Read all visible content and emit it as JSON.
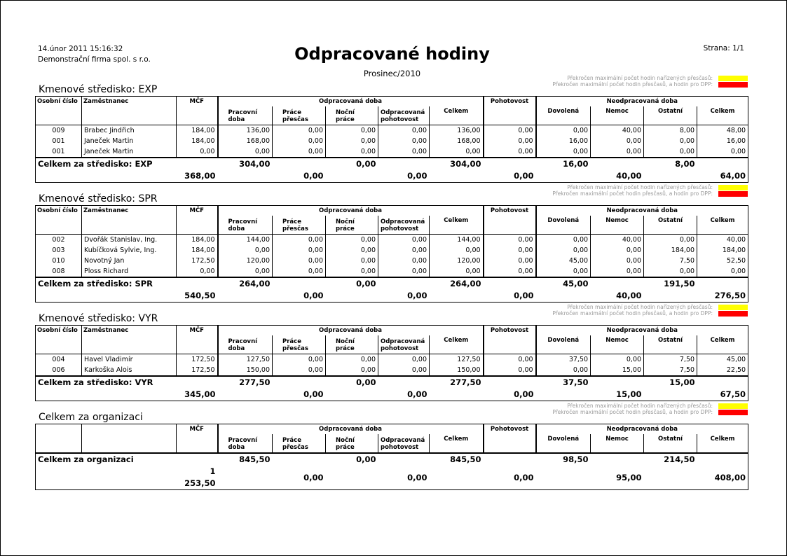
{
  "header": {
    "datetime": "14.únor 2011  15:16:32",
    "company": "Demonstrační firma spol. s r.o.",
    "title": "Odpracované hodiny",
    "period": "Prosinec/2010",
    "page": "Strana: 1/1"
  },
  "legend": {
    "items": [
      {
        "text": "Překročen maximální počet hodin nařízených přesčasů:",
        "color": "#ffff00"
      },
      {
        "text": "Překročen maximální počet hodin přesčasů, a hodin pro DPP:",
        "color": "#ff0000"
      }
    ]
  },
  "columns": {
    "osobni": "Osobní číslo",
    "zam": "Zaměstnanec",
    "mcf": "MČF",
    "odpr": "Odpracovaná doba",
    "prac1": "Pracovní",
    "prac2": "doba",
    "pres1": "Práce",
    "pres2": "přesčas",
    "noc1": "Noční",
    "noc2": "práce",
    "opoh1": "Odpracovaná",
    "opoh2": "pohotovost",
    "celkem": "Celkem",
    "pohot": "Pohotovost",
    "neodpr": "Neodpracovaná doba",
    "dov": "Dovolená",
    "nemoc": "Nemoc",
    "ostatni": "Ostatní",
    "celkem2": "Celkem"
  },
  "sections": [
    {
      "title": "Kmenové středisko: EXP",
      "show_ids": true,
      "rows": [
        [
          "009",
          "Brabec Jindřich",
          "184,00",
          "136,00",
          "0,00",
          "0,00",
          "0,00",
          "136,00",
          "0,00",
          "0,00",
          "40,00",
          "8,00",
          "48,00"
        ],
        [
          "001",
          "Janeček Martin",
          "184,00",
          "168,00",
          "0,00",
          "0,00",
          "0,00",
          "168,00",
          "0,00",
          "16,00",
          "0,00",
          "0,00",
          "16,00"
        ],
        [
          "001",
          "Janeček Martin",
          "0,00",
          "0,00",
          "0,00",
          "0,00",
          "0,00",
          "0,00",
          "0,00",
          "0,00",
          "0,00",
          "0,00",
          "0,00"
        ]
      ],
      "summary": {
        "label": "Celkem za středisko: EXP",
        "row1": [
          "304,00",
          "0,00",
          "304,00",
          "16,00",
          "8,00"
        ],
        "row2": [
          "368,00",
          "0,00",
          "0,00",
          "0,00",
          "40,00",
          "64,00"
        ]
      }
    },
    {
      "title": "Kmenové středisko: SPR",
      "show_ids": true,
      "rows": [
        [
          "002",
          "Dvořák Stanislav, Ing.",
          "184,00",
          "144,00",
          "0,00",
          "0,00",
          "0,00",
          "144,00",
          "0,00",
          "0,00",
          "40,00",
          "0,00",
          "40,00"
        ],
        [
          "003",
          "Kubíčková Sylvie, Ing.",
          "184,00",
          "0,00",
          "0,00",
          "0,00",
          "0,00",
          "0,00",
          "0,00",
          "0,00",
          "0,00",
          "184,00",
          "184,00"
        ],
        [
          "010",
          "Novotný Jan",
          "172,50",
          "120,00",
          "0,00",
          "0,00",
          "0,00",
          "120,00",
          "0,00",
          "45,00",
          "0,00",
          "7,50",
          "52,50"
        ],
        [
          "008",
          "Ploss Richard",
          "0,00",
          "0,00",
          "0,00",
          "0,00",
          "0,00",
          "0,00",
          "0,00",
          "0,00",
          "0,00",
          "0,00",
          "0,00"
        ]
      ],
      "summary": {
        "label": "Celkem za středisko: SPR",
        "row1": [
          "264,00",
          "0,00",
          "264,00",
          "45,00",
          "191,50"
        ],
        "row2": [
          "540,50",
          "0,00",
          "0,00",
          "0,00",
          "40,00",
          "276,50"
        ]
      }
    },
    {
      "title": "Kmenové středisko: VYR",
      "show_ids": true,
      "rows": [
        [
          "004",
          "Havel Vladimír",
          "172,50",
          "127,50",
          "0,00",
          "0,00",
          "0,00",
          "127,50",
          "0,00",
          "37,50",
          "0,00",
          "7,50",
          "45,00"
        ],
        [
          "006",
          "Karkoška Alois",
          "172,50",
          "150,00",
          "0,00",
          "0,00",
          "0,00",
          "150,00",
          "0,00",
          "0,00",
          "15,00",
          "7,50",
          "22,50"
        ]
      ],
      "summary": {
        "label": "Celkem za středisko: VYR",
        "row1": [
          "277,50",
          "0,00",
          "277,50",
          "37,50",
          "15,00"
        ],
        "row2": [
          "345,00",
          "0,00",
          "0,00",
          "0,00",
          "15,00",
          "67,50"
        ]
      }
    },
    {
      "title": "Celkem za organizaci",
      "show_ids": false,
      "rows": [],
      "summary": {
        "label": "Celkem za organizaci",
        "row1": [
          "845,50",
          "0,00",
          "845,50",
          "98,50",
          "214,50"
        ],
        "row2": [
          "1 253,50",
          "0,00",
          "0,00",
          "0,00",
          "95,00",
          "408,00"
        ]
      }
    }
  ]
}
